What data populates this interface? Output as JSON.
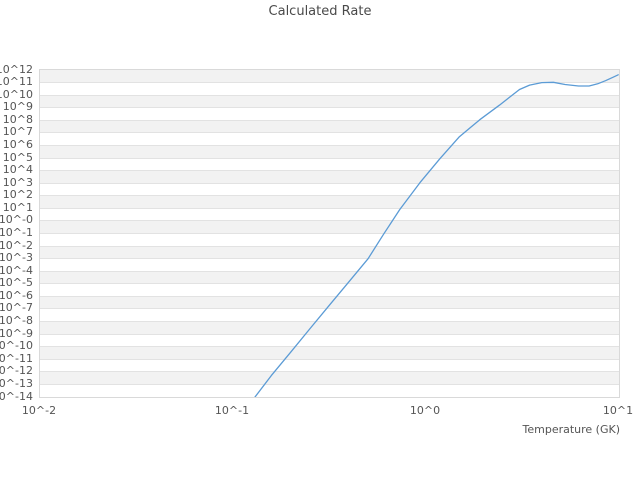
{
  "window": {
    "background": "#ffffff"
  },
  "style": {
    "line_color": "#5b9bd5",
    "band_color": "#f2f2f2",
    "grid_color": "#e2e2e2",
    "border_color": "#d9d9d9",
    "tick_text_color": "#555555",
    "title_color": "#4a4a4a"
  },
  "chart_data": {
    "type": "line",
    "title": "Calculated Rate",
    "xlabel": "Temperature (GK)",
    "ylabel": "",
    "x_scale": "log",
    "y_scale": "log",
    "xlim": [
      0.01,
      10
    ],
    "ylim_exponents": [
      -14,
      12
    ],
    "grid": "horizontal-bands-alternating",
    "legend": "none",
    "x_ticks": [
      {
        "label": "10^-2",
        "value": 0.01
      },
      {
        "label": "10^-1",
        "value": 0.1
      },
      {
        "label": "10^0",
        "value": 1
      },
      {
        "label": "10^1",
        "value": 10
      }
    ],
    "y_tick_labels_top_to_bottom": [
      "10^12",
      "10^11",
      "10^10",
      "10^9",
      "10^8",
      "10^7",
      "10^6",
      "10^5",
      "10^4",
      "10^3",
      "10^2",
      "10^1",
      "10^-0",
      "10^-1",
      "10^-2",
      "10^-3",
      "10^-4",
      "10^-5",
      "10^-6",
      "10^-7",
      "10^-8",
      "10^-9",
      "10^-10",
      "10^-11",
      "10^-12",
      "10^-13",
      "10^-14"
    ],
    "y_tick_exponents_top_to_bottom": [
      12,
      11,
      10,
      9,
      8,
      7,
      6,
      5,
      4,
      3,
      2,
      1,
      0,
      -1,
      -2,
      -3,
      -4,
      -5,
      -6,
      -7,
      -8,
      -9,
      -10,
      -11,
      -12,
      -13,
      -14
    ],
    "series": [
      {
        "name": "calculated-rate",
        "color": "#5b9bd5",
        "x_temperature_gk": [
          0.13,
          0.158,
          0.2,
          0.251,
          0.316,
          0.398,
          0.501,
          0.6,
          0.731,
          0.931,
          1.18,
          1.49,
          1.9,
          2.4,
          3.05,
          3.44,
          3.98,
          4.57,
          5.25,
          6.17,
          7.0,
          7.76,
          8.51,
          9.3,
          9.9
        ],
        "log10_rate": [
          -14.0,
          -12.3,
          -10.4,
          -8.55,
          -6.7,
          -4.85,
          -3.0,
          -1.1,
          0.9,
          3.05,
          4.95,
          6.7,
          8.05,
          9.2,
          10.45,
          10.8,
          11.0,
          11.02,
          10.85,
          10.73,
          10.73,
          10.9,
          11.15,
          11.42,
          11.62
        ]
      }
    ]
  }
}
